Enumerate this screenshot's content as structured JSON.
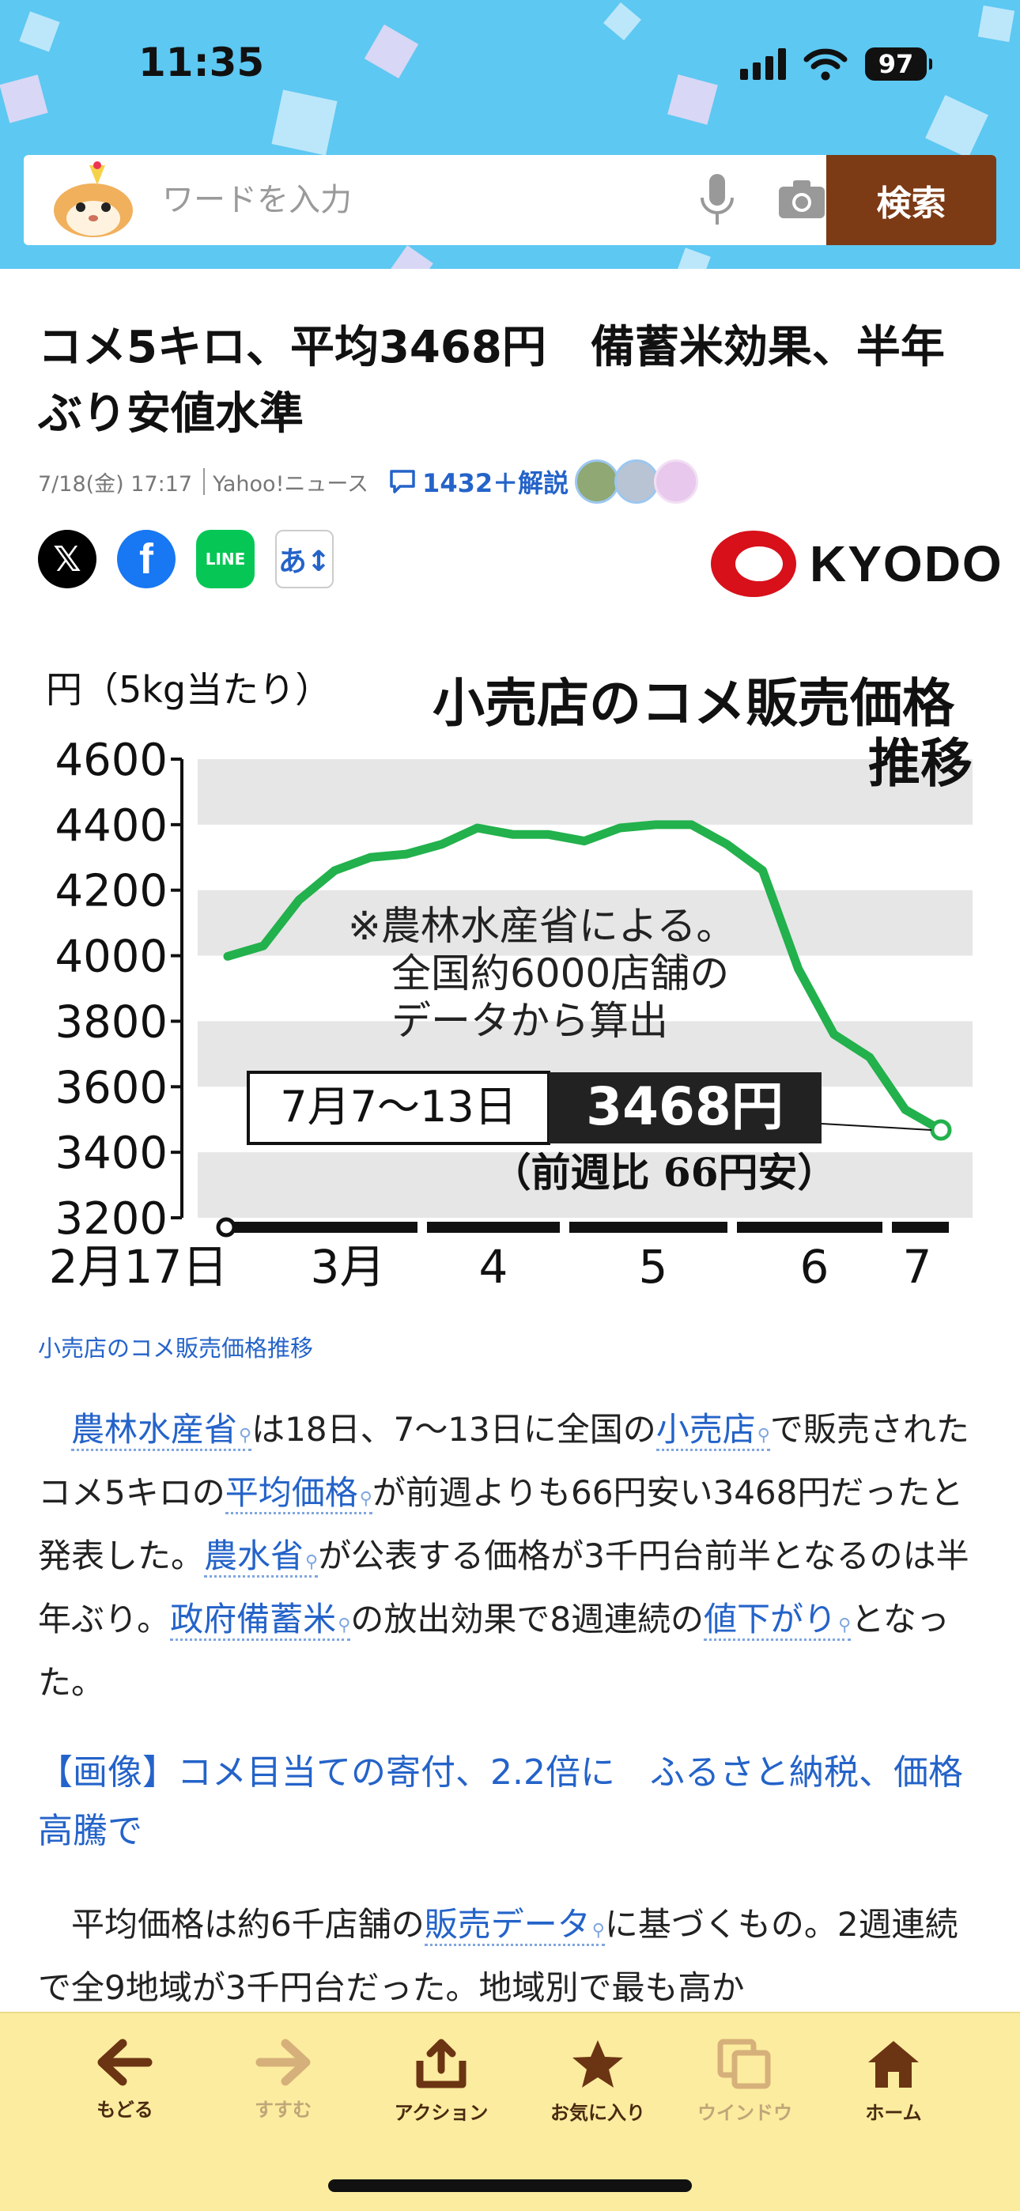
{
  "status": {
    "time": "11:35",
    "battery": "97"
  },
  "search": {
    "placeholder": "ワードを入力",
    "button": "検索"
  },
  "article": {
    "title": "コメ5キロ、平均3468円　備蓄米効果、半年ぶり安値水準",
    "date": "7/18(金) 17:17",
    "source": "Yahoo!ニュース",
    "comments": "1432＋解説",
    "publisher": "KYODO",
    "font_size_button": "あ↕"
  },
  "chart_data": {
    "type": "line",
    "title": "小売店のコメ販売価格推移",
    "ylabel": "円（5kg当たり）",
    "ylim": [
      3200,
      4600
    ],
    "yticks": [
      4600,
      4400,
      4200,
      4000,
      3800,
      3600,
      3400,
      3200
    ],
    "xtick_labels": [
      "2月17日",
      "3月",
      "4",
      "5",
      "6",
      "7"
    ],
    "note_lines": [
      "※農林水産省による。",
      "全国約6000店舗の",
      "データから算出"
    ],
    "highlight_period": "7月7〜13日",
    "highlight_value": "3468円",
    "highlight_change": "（前週比 66円安）",
    "series": [
      {
        "values": [
          3998,
          4030,
          4170,
          4260,
          4300,
          4310,
          4340,
          4390,
          4370,
          4370,
          4350,
          4390,
          4400,
          4400,
          4340,
          4260,
          3960,
          3760,
          3690,
          3530,
          3468
        ]
      }
    ]
  },
  "caption": "小売店のコメ販売価格推移",
  "para1": {
    "kw1": "農林水産省",
    "t1": "は18日、7〜13日に全国の",
    "kw2": "小売店",
    "t2": "で販売されたコメ5キロの",
    "kw3": "平均価格",
    "t3": "が前週よりも66円安い3468円だったと発表した。",
    "kw4": "農水省",
    "t4": "が公表する価格が3千円台前半となるのは半年ぶり。",
    "kw5": "政府備蓄米",
    "t5": "の放出効果で8週連続の",
    "kw6": "値下がり",
    "t6": "となった。"
  },
  "related_link": "【画像】コメ目当ての寄付、2.2倍に　ふるさと納税、価格高騰で",
  "para2": {
    "t1": "平均価格は約6千店舗の",
    "kw1": "販売データ",
    "t2": "に基づくもの。2週連続で全9地域が3千円台だった。地域別で最も高か"
  },
  "toolbar": {
    "back": "もどる",
    "forward": "すすむ",
    "action": "アクション",
    "favorite": "お気に入り",
    "window": "ウインドウ",
    "home": "ホーム"
  },
  "colors": {
    "header": "#5dc8f2",
    "search_button": "#7c3a15",
    "link": "#2463c9",
    "chart_line": "#22b14c",
    "toolbar": "#fcec9f"
  }
}
